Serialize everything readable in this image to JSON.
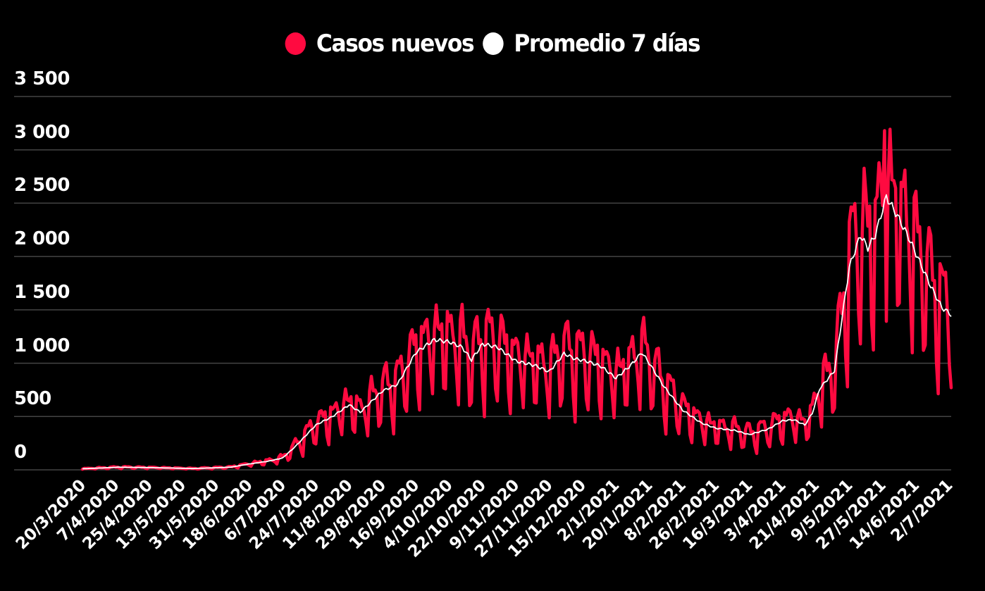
{
  "legend": {
    "series_a": {
      "label": "Casos nuevos",
      "color": "#ff0a40"
    },
    "series_b": {
      "label": "Promedio 7 días",
      "color": "#ffffff"
    }
  },
  "colors": {
    "background": "#000000",
    "grid": "#444444",
    "text": "#ffffff"
  },
  "chart_data": {
    "type": "line",
    "title": "",
    "xlabel": "",
    "ylabel": "",
    "ylim": [
      0,
      3500
    ],
    "grid": true,
    "legend_position": "top",
    "y_ticks": [
      {
        "value": 0,
        "label": "0"
      },
      {
        "value": 500,
        "label": "500"
      },
      {
        "value": 1000,
        "label": "1 000"
      },
      {
        "value": 1500,
        "label": "1 500"
      },
      {
        "value": 2000,
        "label": "2 000"
      },
      {
        "value": 2500,
        "label": "2 500"
      },
      {
        "value": 3000,
        "label": "3 000"
      },
      {
        "value": 3500,
        "label": "3 500"
      }
    ],
    "x_start": "20/3/2020",
    "x_end": "2/7/2021",
    "n_days": 470,
    "x_tick_labels": [
      "20/3/2020",
      "7/4/2020",
      "25/4/2020",
      "13/5/2020",
      "31/5/2020",
      "18/6/2020",
      "6/7/2020",
      "24/7/2020",
      "11/8/2020",
      "29/8/2020",
      "16/9/2020",
      "4/10/2020",
      "22/10/2020",
      "9/11/2020",
      "27/11/2020",
      "15/12/2020",
      "2/1/2021",
      "20/1/2021",
      "8/2/2021",
      "26/2/2021",
      "16/3/2021",
      "3/4/2021",
      "21/4/2021",
      "9/5/2021",
      "27/5/2021",
      "14/6/2021",
      "2/7/2021"
    ],
    "x_tick_step_days": 18,
    "avg_anchors": [
      [
        0,
        10
      ],
      [
        20,
        25
      ],
      [
        40,
        20
      ],
      [
        60,
        12
      ],
      [
        80,
        25
      ],
      [
        90,
        55
      ],
      [
        100,
        80
      ],
      [
        108,
        110
      ],
      [
        115,
        220
      ],
      [
        126,
        420
      ],
      [
        135,
        500
      ],
      [
        144,
        610
      ],
      [
        150,
        540
      ],
      [
        162,
        740
      ],
      [
        170,
        800
      ],
      [
        180,
        1100
      ],
      [
        190,
        1220
      ],
      [
        198,
        1200
      ],
      [
        205,
        1150
      ],
      [
        210,
        1030
      ],
      [
        216,
        1180
      ],
      [
        224,
        1150
      ],
      [
        234,
        1020
      ],
      [
        244,
        980
      ],
      [
        252,
        920
      ],
      [
        260,
        1090
      ],
      [
        266,
        1040
      ],
      [
        272,
        1020
      ],
      [
        280,
        970
      ],
      [
        288,
        860
      ],
      [
        296,
        980
      ],
      [
        302,
        1100
      ],
      [
        306,
        1000
      ],
      [
        314,
        780
      ],
      [
        324,
        560
      ],
      [
        334,
        440
      ],
      [
        342,
        390
      ],
      [
        352,
        370
      ],
      [
        360,
        330
      ],
      [
        370,
        380
      ],
      [
        378,
        460
      ],
      [
        384,
        470
      ],
      [
        390,
        420
      ],
      [
        394,
        530
      ],
      [
        398,
        760
      ],
      [
        406,
        930
      ],
      [
        414,
        1900
      ],
      [
        420,
        2200
      ],
      [
        424,
        2080
      ],
      [
        428,
        2200
      ],
      [
        434,
        2560
      ],
      [
        440,
        2380
      ],
      [
        446,
        2180
      ],
      [
        452,
        1950
      ],
      [
        458,
        1720
      ],
      [
        464,
        1520
      ],
      [
        468,
        1470
      ],
      [
        469,
        1450
      ]
    ],
    "weekly_amplitude_ratio": 0.35,
    "series": [
      {
        "name": "Casos nuevos",
        "color": "#ff0a40",
        "values": []
      },
      {
        "name": "Promedio 7 días",
        "color": "#ffffff",
        "values": []
      }
    ],
    "notable_points": [
      {
        "date": "27/5/2021",
        "series": "Casos nuevos",
        "value": 3180
      },
      {
        "date": "27/5/2021",
        "series": "Promedio 7 días",
        "value": 2570
      },
      {
        "date": "4/10/2020",
        "series": "Casos nuevos",
        "value": 1560
      },
      {
        "date": "2/7/2021",
        "series": "Casos nuevos",
        "value": 1650
      },
      {
        "date": "2/7/2021",
        "series": "Promedio 7 días",
        "value": 1460
      }
    ]
  }
}
